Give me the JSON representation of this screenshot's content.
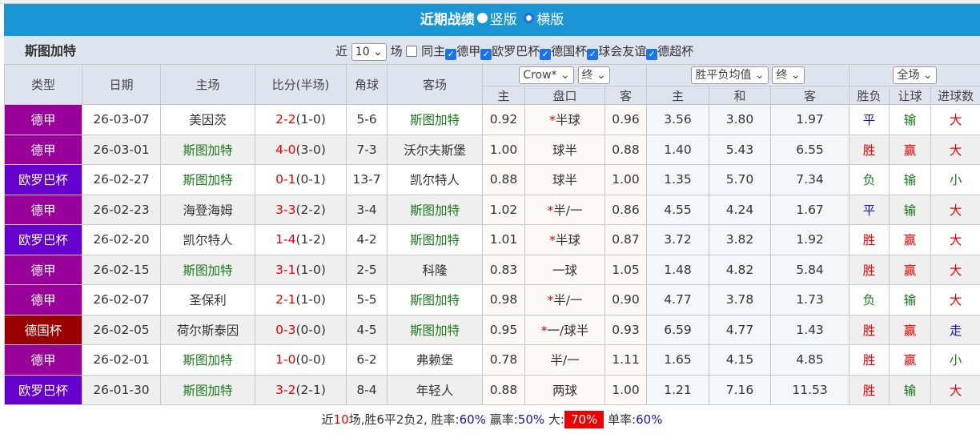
{
  "title": "近期战绩",
  "view_options": [
    "竖版",
    "横版"
  ],
  "team": "斯图加特",
  "filter": {
    "prefix": "近",
    "count": "10",
    "suffix": "场",
    "same_home": "同主",
    "leagues": [
      "德甲",
      "欧罗巴杯",
      "德国杯",
      "球会友谊",
      "德超杯"
    ]
  },
  "headers": {
    "type": "类型",
    "date": "日期",
    "home": "主场",
    "score": "比分(半场)",
    "corner": "角球",
    "away": "客场",
    "company_select": "Crow*",
    "final_select1": "终",
    "euro_select": "胜平负均值",
    "final_select2": "终",
    "period_select": "全场",
    "sub": [
      "主",
      "盘口",
      "客",
      "主",
      "和",
      "客",
      "胜负",
      "让球",
      "进球数"
    ]
  },
  "league_colors": {
    "德甲": "#990099",
    "欧罗巴杯": "#6600cc",
    "德国杯": "#990000"
  },
  "rows": [
    {
      "league": "德甲",
      "date": "26-03-07",
      "home": "美因茨",
      "score": "2-2",
      "half": "(1-0)",
      "corner": "5-6",
      "away": "斯图加特",
      "teamHome": false,
      "ah_h": "0.92",
      "line": "半球",
      "star": true,
      "ah_a": "0.96",
      "eu_h": "3.56",
      "eu_d": "3.80",
      "eu_a": "1.97",
      "res": "平",
      "hc": "输",
      "ou": "大"
    },
    {
      "league": "德甲",
      "date": "26-03-01",
      "home": "斯图加特",
      "score": "4-0",
      "half": "(3-0)",
      "corner": "7-3",
      "away": "沃尔夫斯堡",
      "teamHome": true,
      "ah_h": "1.00",
      "line": "球半",
      "star": false,
      "ah_a": "0.88",
      "eu_h": "1.40",
      "eu_d": "5.43",
      "eu_a": "6.55",
      "res": "胜",
      "hc": "赢",
      "ou": "大"
    },
    {
      "league": "欧罗巴杯",
      "date": "26-02-27",
      "home": "斯图加特",
      "score": "0-1",
      "half": "(0-1)",
      "corner": "13-7",
      "away": "凯尔特人",
      "teamHome": true,
      "ah_h": "0.88",
      "line": "球半",
      "star": false,
      "ah_a": "1.00",
      "eu_h": "1.35",
      "eu_d": "5.70",
      "eu_a": "7.34",
      "res": "负",
      "hc": "输",
      "ou": "小"
    },
    {
      "league": "德甲",
      "date": "26-02-23",
      "home": "海登海姆",
      "score": "3-3",
      "half": "(2-2)",
      "corner": "3-4",
      "away": "斯图加特",
      "teamHome": false,
      "ah_h": "1.02",
      "line": "半/一",
      "star": true,
      "ah_a": "0.86",
      "eu_h": "4.55",
      "eu_d": "4.24",
      "eu_a": "1.67",
      "res": "平",
      "hc": "输",
      "ou": "大"
    },
    {
      "league": "欧罗巴杯",
      "date": "26-02-20",
      "home": "凯尔特人",
      "score": "1-4",
      "half": "(1-2)",
      "corner": "4-2",
      "away": "斯图加特",
      "teamHome": false,
      "ah_h": "1.01",
      "line": "半球",
      "star": true,
      "ah_a": "0.87",
      "eu_h": "3.72",
      "eu_d": "3.82",
      "eu_a": "1.92",
      "res": "胜",
      "hc": "赢",
      "ou": "大"
    },
    {
      "league": "德甲",
      "date": "26-02-15",
      "home": "斯图加特",
      "score": "3-1",
      "half": "(1-0)",
      "corner": "2-5",
      "away": "科隆",
      "teamHome": true,
      "ah_h": "0.83",
      "line": "一球",
      "star": false,
      "ah_a": "1.05",
      "eu_h": "1.48",
      "eu_d": "4.82",
      "eu_a": "5.84",
      "res": "胜",
      "hc": "赢",
      "ou": "大"
    },
    {
      "league": "德甲",
      "date": "26-02-07",
      "home": "圣保利",
      "score": "2-1",
      "half": "(1-0)",
      "corner": "5-5",
      "away": "斯图加特",
      "teamHome": false,
      "ah_h": "0.98",
      "line": "半/一",
      "star": true,
      "ah_a": "0.90",
      "eu_h": "4.77",
      "eu_d": "3.78",
      "eu_a": "1.73",
      "res": "负",
      "hc": "输",
      "ou": "大"
    },
    {
      "league": "德国杯",
      "date": "26-02-05",
      "home": "荷尔斯泰因",
      "score": "0-3",
      "half": "(0-0)",
      "corner": "4-5",
      "away": "斯图加特",
      "teamHome": false,
      "ah_h": "0.95",
      "line": "一/球半",
      "star": true,
      "ah_a": "0.93",
      "eu_h": "6.59",
      "eu_d": "4.77",
      "eu_a": "1.43",
      "res": "胜",
      "hc": "赢",
      "ou": "走"
    },
    {
      "league": "德甲",
      "date": "26-02-01",
      "home": "斯图加特",
      "score": "1-0",
      "half": "(0-0)",
      "corner": "6-2",
      "away": "弗赖堡",
      "teamHome": true,
      "ah_h": "0.78",
      "line": "半/一",
      "star": false,
      "ah_a": "1.11",
      "eu_h": "1.65",
      "eu_d": "4.15",
      "eu_a": "4.85",
      "res": "胜",
      "hc": "赢",
      "ou": "小"
    },
    {
      "league": "欧罗巴杯",
      "date": "26-01-30",
      "home": "斯图加特",
      "score": "3-2",
      "half": "(2-1)",
      "corner": "8-4",
      "away": "年轻人",
      "teamHome": true,
      "ah_h": "0.88",
      "line": "两球",
      "star": false,
      "ah_a": "1.00",
      "eu_h": "1.21",
      "eu_d": "7.16",
      "eu_a": "11.53",
      "res": "胜",
      "hc": "输",
      "ou": "大"
    }
  ],
  "summary": {
    "p1": "近",
    "n": "10",
    "p2": "场,胜6平2负2, 胜率:",
    "win_rate": "60%",
    "p3": " 赢率:",
    "cover_rate": "50%",
    "p4": " 大:",
    "over_rate": "70%",
    "p5": " 单率:",
    "odd_rate": "60%"
  }
}
